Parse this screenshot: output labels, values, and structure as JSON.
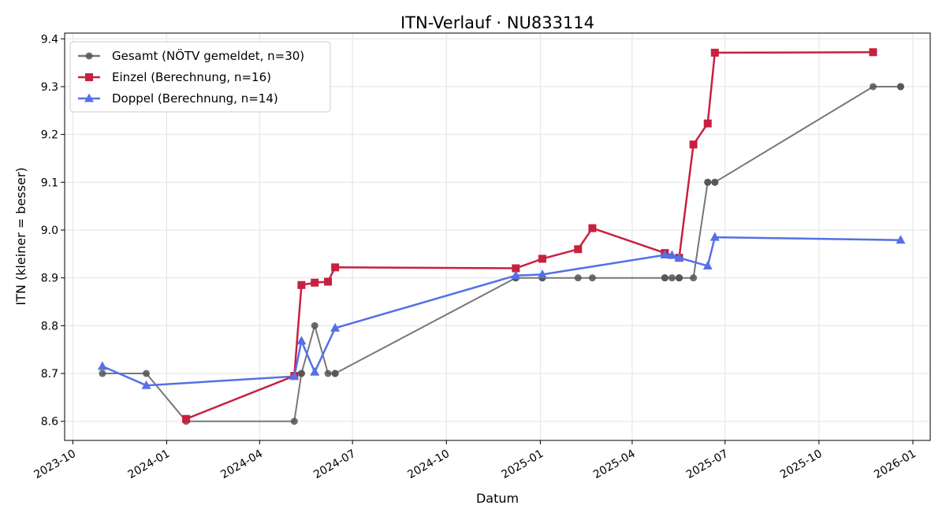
{
  "chart_data": {
    "type": "line",
    "title": "ITN-Verlauf · NU833114",
    "xlabel": "Datum",
    "ylabel": "ITN  (kleiner = besser)",
    "xlim": [
      "2023-09-23",
      "2026-01-18"
    ],
    "ylim": [
      8.56,
      9.412
    ],
    "x_ticks": [
      "2023-10-01",
      "2024-01-01",
      "2024-04-01",
      "2024-07-01",
      "2024-10-01",
      "2025-01-01",
      "2025-04-01",
      "2025-07-01",
      "2025-10-01",
      "2026-01-01"
    ],
    "x_tick_labels": [
      "2023-10",
      "2024-01",
      "2024-04",
      "2024-07",
      "2024-10",
      "2025-01",
      "2025-04",
      "2025-07",
      "2025-10",
      "2026-01"
    ],
    "y_ticks": [
      8.6,
      8.7,
      8.8,
      8.9,
      9.0,
      9.1,
      9.2,
      9.3,
      9.4
    ],
    "y_tick_labels": [
      "8.6",
      "8.7",
      "8.8",
      "8.9",
      "9.0",
      "9.1",
      "9.2",
      "9.3",
      "9.4"
    ],
    "grid": true,
    "legend_position": "top-left",
    "series": [
      {
        "name": "Gesamt (NÖTV gemeldet, n=30)",
        "color": "#777777",
        "marker_color": "#555555",
        "marker": "circle",
        "x": [
          "2023-10-30",
          "2023-12-12",
          "2024-01-20",
          "2024-05-05",
          "2024-05-12",
          "2024-05-12",
          "2024-05-25",
          "2024-06-07",
          "2024-06-14",
          "2024-06-14",
          "2024-12-08",
          "2024-12-08",
          "2025-01-03",
          "2025-01-03",
          "2025-02-07",
          "2025-02-21",
          "2025-05-03",
          "2025-05-03",
          "2025-05-10",
          "2025-05-17",
          "2025-05-17",
          "2025-05-17",
          "2025-05-31",
          "2025-06-14",
          "2025-06-14",
          "2025-06-21",
          "2025-06-21",
          "2025-11-23",
          "2025-12-20",
          "2025-12-20"
        ],
        "y": [
          8.7,
          8.7,
          8.6,
          8.6,
          8.7,
          8.7,
          8.8,
          8.7,
          8.7,
          8.7,
          8.9,
          8.9,
          8.9,
          8.9,
          8.9,
          8.9,
          8.9,
          8.9,
          8.9,
          8.9,
          8.9,
          8.9,
          8.9,
          9.1,
          9.1,
          9.1,
          9.1,
          9.3,
          9.3,
          9.3
        ]
      },
      {
        "name": "Einzel (Berechnung, n=16)",
        "color": "#c8203f",
        "marker_color": "#c8203f",
        "marker": "square",
        "x": [
          "2024-01-20",
          "2024-05-05",
          "2024-05-12",
          "2024-05-25",
          "2024-06-07",
          "2024-06-14",
          "2024-12-08",
          "2025-01-03",
          "2025-02-07",
          "2025-02-21",
          "2025-05-03",
          "2025-05-17",
          "2025-05-31",
          "2025-06-14",
          "2025-06-21",
          "2025-11-23"
        ],
        "y": [
          8.605,
          8.695,
          8.885,
          8.89,
          8.892,
          8.922,
          8.92,
          8.94,
          8.96,
          9.004,
          8.952,
          8.942,
          9.179,
          9.223,
          9.371,
          9.372
        ]
      },
      {
        "name": "Doppel (Berechnung, n=14)",
        "color": "#5470e6",
        "marker_color": "#5470e6",
        "marker": "triangle",
        "x": [
          "2023-10-30",
          "2023-12-12",
          "2024-05-05",
          "2024-05-12",
          "2024-05-25",
          "2024-06-14",
          "2024-12-08",
          "2025-01-03",
          "2025-05-03",
          "2025-05-10",
          "2025-05-17",
          "2025-06-14",
          "2025-06-21",
          "2025-12-20"
        ],
        "y": [
          8.715,
          8.675,
          8.694,
          8.768,
          8.703,
          8.795,
          8.905,
          8.907,
          8.948,
          8.947,
          8.942,
          8.925,
          8.985,
          8.979
        ]
      }
    ]
  }
}
